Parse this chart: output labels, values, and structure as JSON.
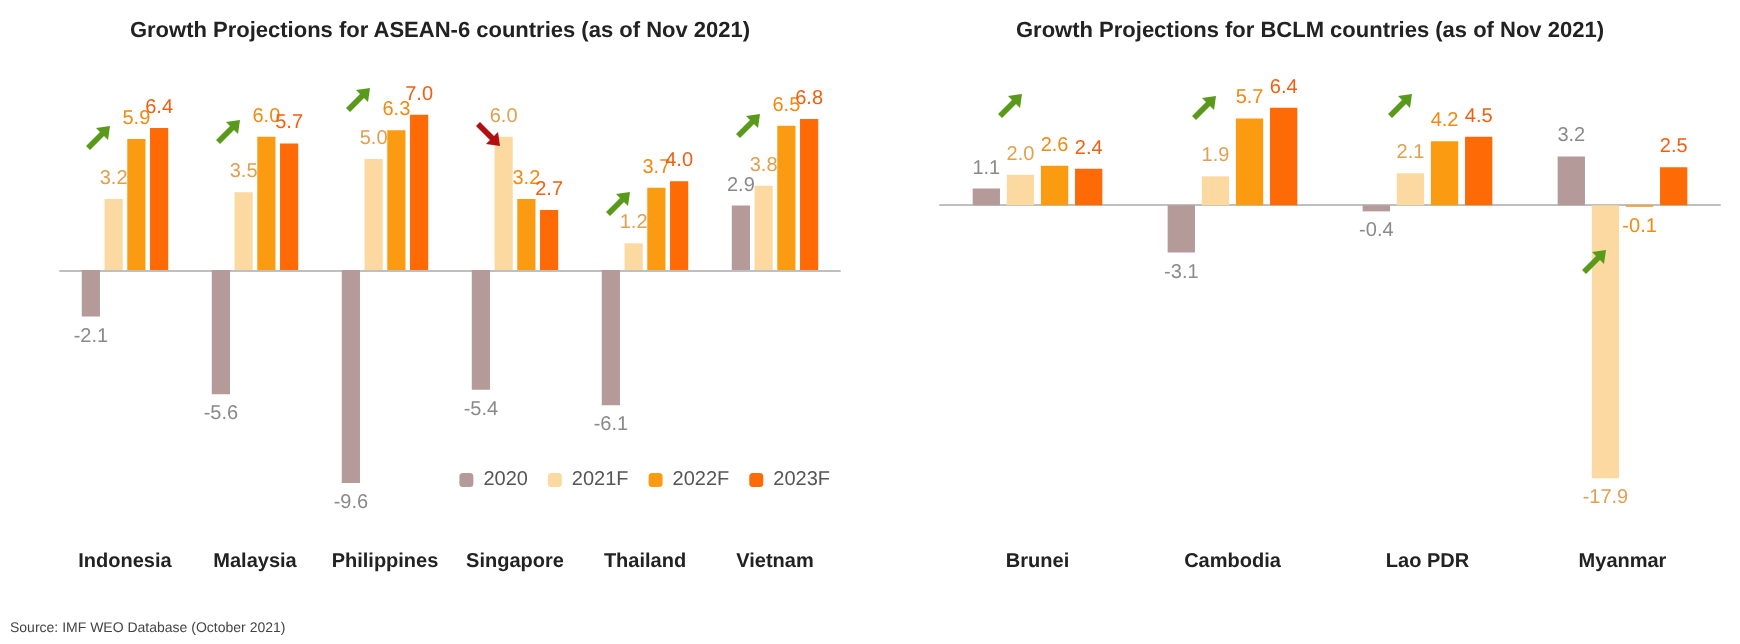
{
  "chart_data": [
    {
      "type": "bar",
      "title": "Growth Projections for ASEAN-6 countries (as of Nov 2021)",
      "categories": [
        "Indonesia",
        "Malaysia",
        "Philippines",
        "Singapore",
        "Thailand",
        "Vietnam"
      ],
      "series": [
        {
          "name": "2020",
          "color": "#b59a9a",
          "values": [
            -2.1,
            -5.6,
            -9.6,
            -5.4,
            -6.1,
            2.9
          ],
          "value_labels": [
            "-2.1",
            "-5.6",
            "-9.6",
            "-5.4",
            "-6.1",
            "2.9"
          ]
        },
        {
          "name": "2021F",
          "color": "#fcd9a0",
          "values": [
            3.2,
            3.5,
            5.0,
            6.0,
            1.2,
            3.8
          ],
          "value_labels": [
            "3.2",
            "3.5",
            "5.0",
            "6.0",
            "1.2",
            "3.8"
          ]
        },
        {
          "name": "2022F",
          "color": "#fb9b12",
          "values": [
            5.9,
            6.0,
            6.3,
            3.2,
            3.7,
            6.5
          ],
          "value_labels": [
            "5.9",
            "6.0",
            "6.3",
            "3.2",
            "3.7",
            "6.5"
          ]
        },
        {
          "name": "2023F",
          "color": "#fd6a06",
          "values": [
            6.4,
            5.7,
            7.0,
            2.7,
            4.0,
            6.8
          ],
          "value_labels": [
            "6.4",
            "5.7",
            "7.0",
            "2.7",
            "4.0",
            "6.8"
          ]
        }
      ],
      "legend": "bottom right",
      "annotations": [
        "Source: IMF WEO Database (October 2021)"
      ]
    },
    {
      "type": "bar",
      "title": "Growth Projections for BCLM countries (as of Nov 2021)",
      "categories": [
        "Brunei",
        "Cambodia",
        "Lao PDR",
        "Myanmar"
      ],
      "series": [
        {
          "color": "#b59a9a",
          "values": [
            1.1,
            -3.1,
            -0.4,
            3.2
          ],
          "value_labels": [
            "1.1",
            "-3.1",
            "-0.4",
            "3.2"
          ]
        },
        {
          "color": "#fcd9a0",
          "values": [
            2.0,
            1.9,
            2.1,
            -17.9
          ],
          "value_labels": [
            "2.0",
            "1.9",
            "2.1",
            "-17.9"
          ]
        },
        {
          "color": "#fb9b12",
          "values": [
            2.6,
            5.7,
            4.2,
            -0.1
          ],
          "value_labels": [
            "2.6",
            "5.7",
            "4.2",
            "-0.1"
          ]
        },
        {
          "color": "#fd6a06",
          "values": [
            2.4,
            6.4,
            4.5,
            2.5
          ],
          "value_labels": [
            "2.4",
            "6.4",
            "4.5",
            "2.5"
          ]
        }
      ],
      "legend": false
    }
  ]
}
